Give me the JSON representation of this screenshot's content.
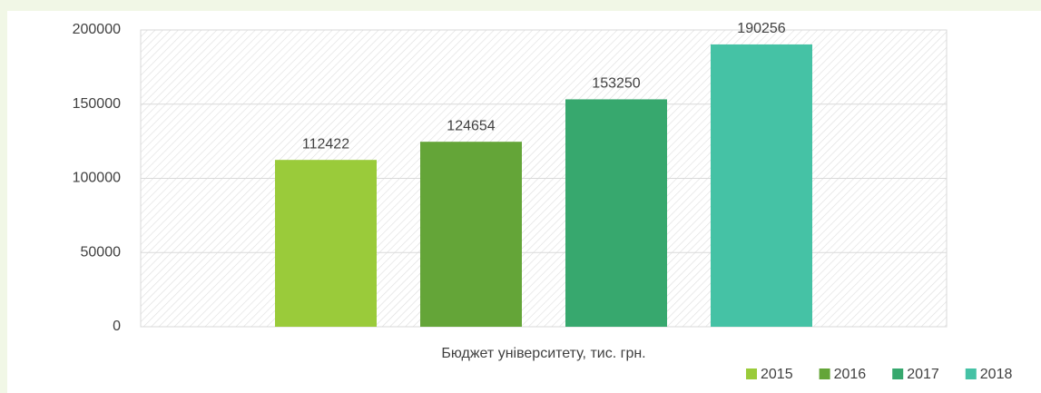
{
  "chart_data": {
    "type": "bar",
    "categories": [
      "Бюджет університету, тис. грн."
    ],
    "series": [
      {
        "name": "2015",
        "color": "#9acb3a",
        "values": [
          112422
        ]
      },
      {
        "name": "2016",
        "color": "#64a538",
        "values": [
          124654
        ]
      },
      {
        "name": "2017",
        "color": "#37a86e",
        "values": [
          153250
        ]
      },
      {
        "name": "2018",
        "color": "#45c2a5",
        "values": [
          190256
        ]
      }
    ],
    "ylim": [
      0,
      200000
    ],
    "yticks": [
      0,
      50000,
      100000,
      150000,
      200000
    ],
    "grid": true,
    "legend": "bottom-right",
    "data_labels": true
  }
}
